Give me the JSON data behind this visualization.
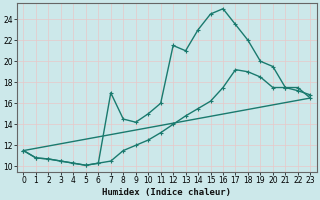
{
  "title": "",
  "xlabel": "Humidex (Indice chaleur)",
  "ylabel": "",
  "bg_color": "#cce8ea",
  "grid_color": "#b8d8da",
  "line_color": "#1a7a6e",
  "xlim": [
    -0.5,
    23.5
  ],
  "ylim": [
    9.5,
    25.5
  ],
  "xticks": [
    0,
    1,
    2,
    3,
    4,
    5,
    6,
    7,
    8,
    9,
    10,
    11,
    12,
    13,
    14,
    15,
    16,
    17,
    18,
    19,
    20,
    21,
    22,
    23
  ],
  "yticks": [
    10,
    12,
    14,
    16,
    18,
    20,
    22,
    24
  ],
  "line1_x": [
    0,
    1,
    2,
    3,
    4,
    5,
    6,
    7,
    8,
    9,
    10,
    11,
    12,
    13,
    14,
    15,
    16,
    17,
    18,
    19,
    20,
    21,
    22,
    23
  ],
  "line1_y": [
    11.5,
    10.8,
    10.7,
    10.5,
    10.3,
    10.1,
    10.3,
    17.0,
    14.5,
    14.2,
    15.0,
    16.0,
    21.5,
    21.0,
    23.0,
    24.5,
    25.0,
    23.5,
    22.0,
    20.0,
    19.5,
    17.5,
    17.2,
    16.8
  ],
  "line2_x": [
    0,
    1,
    2,
    3,
    4,
    5,
    6,
    7,
    8,
    9,
    10,
    11,
    12,
    13,
    14,
    15,
    16,
    17,
    18,
    19,
    20,
    21,
    22,
    23
  ],
  "line2_y": [
    11.5,
    10.8,
    10.7,
    10.5,
    10.3,
    10.1,
    10.3,
    10.5,
    11.5,
    12.0,
    12.5,
    13.2,
    14.0,
    14.8,
    15.5,
    16.2,
    17.5,
    19.2,
    19.0,
    18.5,
    17.5,
    17.5,
    17.5,
    16.5
  ],
  "line3_x": [
    0,
    23
  ],
  "line3_y": [
    11.5,
    16.5
  ],
  "marker_size": 3,
  "lw": 1.0
}
